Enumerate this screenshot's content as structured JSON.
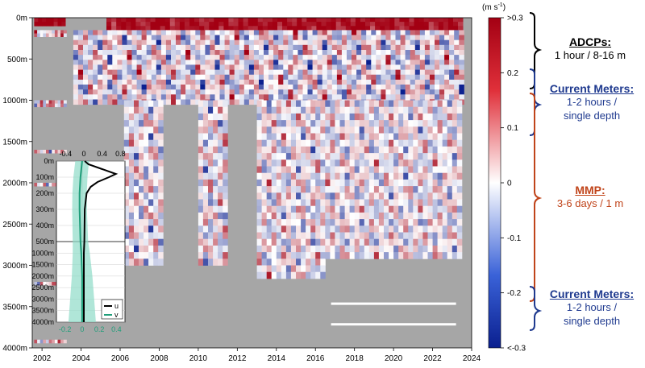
{
  "chart_data": [
    {
      "type": "heatmap",
      "y_label_suffix": "m",
      "x_ticks": [
        "2002",
        "2004",
        "2006",
        "2008",
        "2010",
        "2012",
        "2014",
        "2016",
        "2018",
        "2020",
        "2022",
        "2024"
      ],
      "y_ticks": [
        "0m",
        "500m",
        "1000m",
        "1500m",
        "2000m",
        "2500m",
        "3000m",
        "3500m",
        "4000m"
      ],
      "xlim": [
        2001.5,
        2024
      ],
      "ylim": [
        0,
        4000
      ],
      "colorbar": {
        "unit_label": "(m s",
        "unit_exp": "-1",
        "unit_close": ")",
        "ticks": [
          ">0.3",
          "0.2",
          "0.1",
          "0",
          "-0.1",
          "-0.2",
          "<-0.3"
        ],
        "tick_values": [
          0.3,
          0.2,
          0.1,
          0,
          -0.1,
          -0.2,
          -0.3
        ],
        "range": [
          -0.3,
          0.3
        ],
        "colors": {
          "high": "#a30013",
          "mid": "#ffffff",
          "low": "#0a1f8f"
        }
      },
      "background": "#a6a6a6"
    },
    {
      "type": "line",
      "top_ticks": [
        "-0.4",
        "0",
        "0.4",
        "0.8"
      ],
      "bottom_ticks": [
        "-0.2",
        "0",
        "0.2",
        "0.4"
      ],
      "y_ticks_upper": [
        "0m",
        "100m",
        "200m",
        "300m",
        "400m",
        "500m"
      ],
      "y_ticks_lower": [
        "1000m",
        "1500m",
        "2000m",
        "2500m",
        "3000m",
        "3500m",
        "4000m"
      ],
      "legend": [
        "u",
        "v"
      ],
      "series": [
        {
          "name": "u",
          "color": "#000000",
          "depth": [
            0,
            20,
            50,
            80,
            100,
            130,
            160,
            200,
            300,
            500,
            1000,
            2000,
            3000,
            4000
          ],
          "values": [
            0.02,
            0.1,
            0.4,
            0.7,
            0.55,
            0.3,
            0.15,
            0.06,
            0.02,
            0.01,
            0.0,
            0.0,
            0.0,
            0.0
          ]
        },
        {
          "name": "v",
          "color": "#1f9e7a",
          "depth": [
            0,
            100,
            200,
            300,
            500,
            1000,
            2000,
            3000,
            4000
          ],
          "values": [
            0.0,
            -0.02,
            -0.03,
            -0.03,
            -0.02,
            -0.01,
            0.0,
            0.0,
            0.0
          ]
        }
      ]
    }
  ],
  "annotations": {
    "adcp": {
      "title": "ADCPs:",
      "detail": "1 hour / 8-16 m",
      "color": "#000000"
    },
    "cm_upper": {
      "title": "Current Meters:",
      "line1": "1-2 hours /",
      "line2": "single depth",
      "color": "#1f3a8f"
    },
    "mmp": {
      "title": "MMP:",
      "detail": "3-6 days / 1 m",
      "color": "#c0441a"
    },
    "cm_lower": {
      "title": "Current Meters:",
      "line1": "1-2 hours /",
      "line2": "single depth",
      "color": "#1f3a8f"
    }
  }
}
